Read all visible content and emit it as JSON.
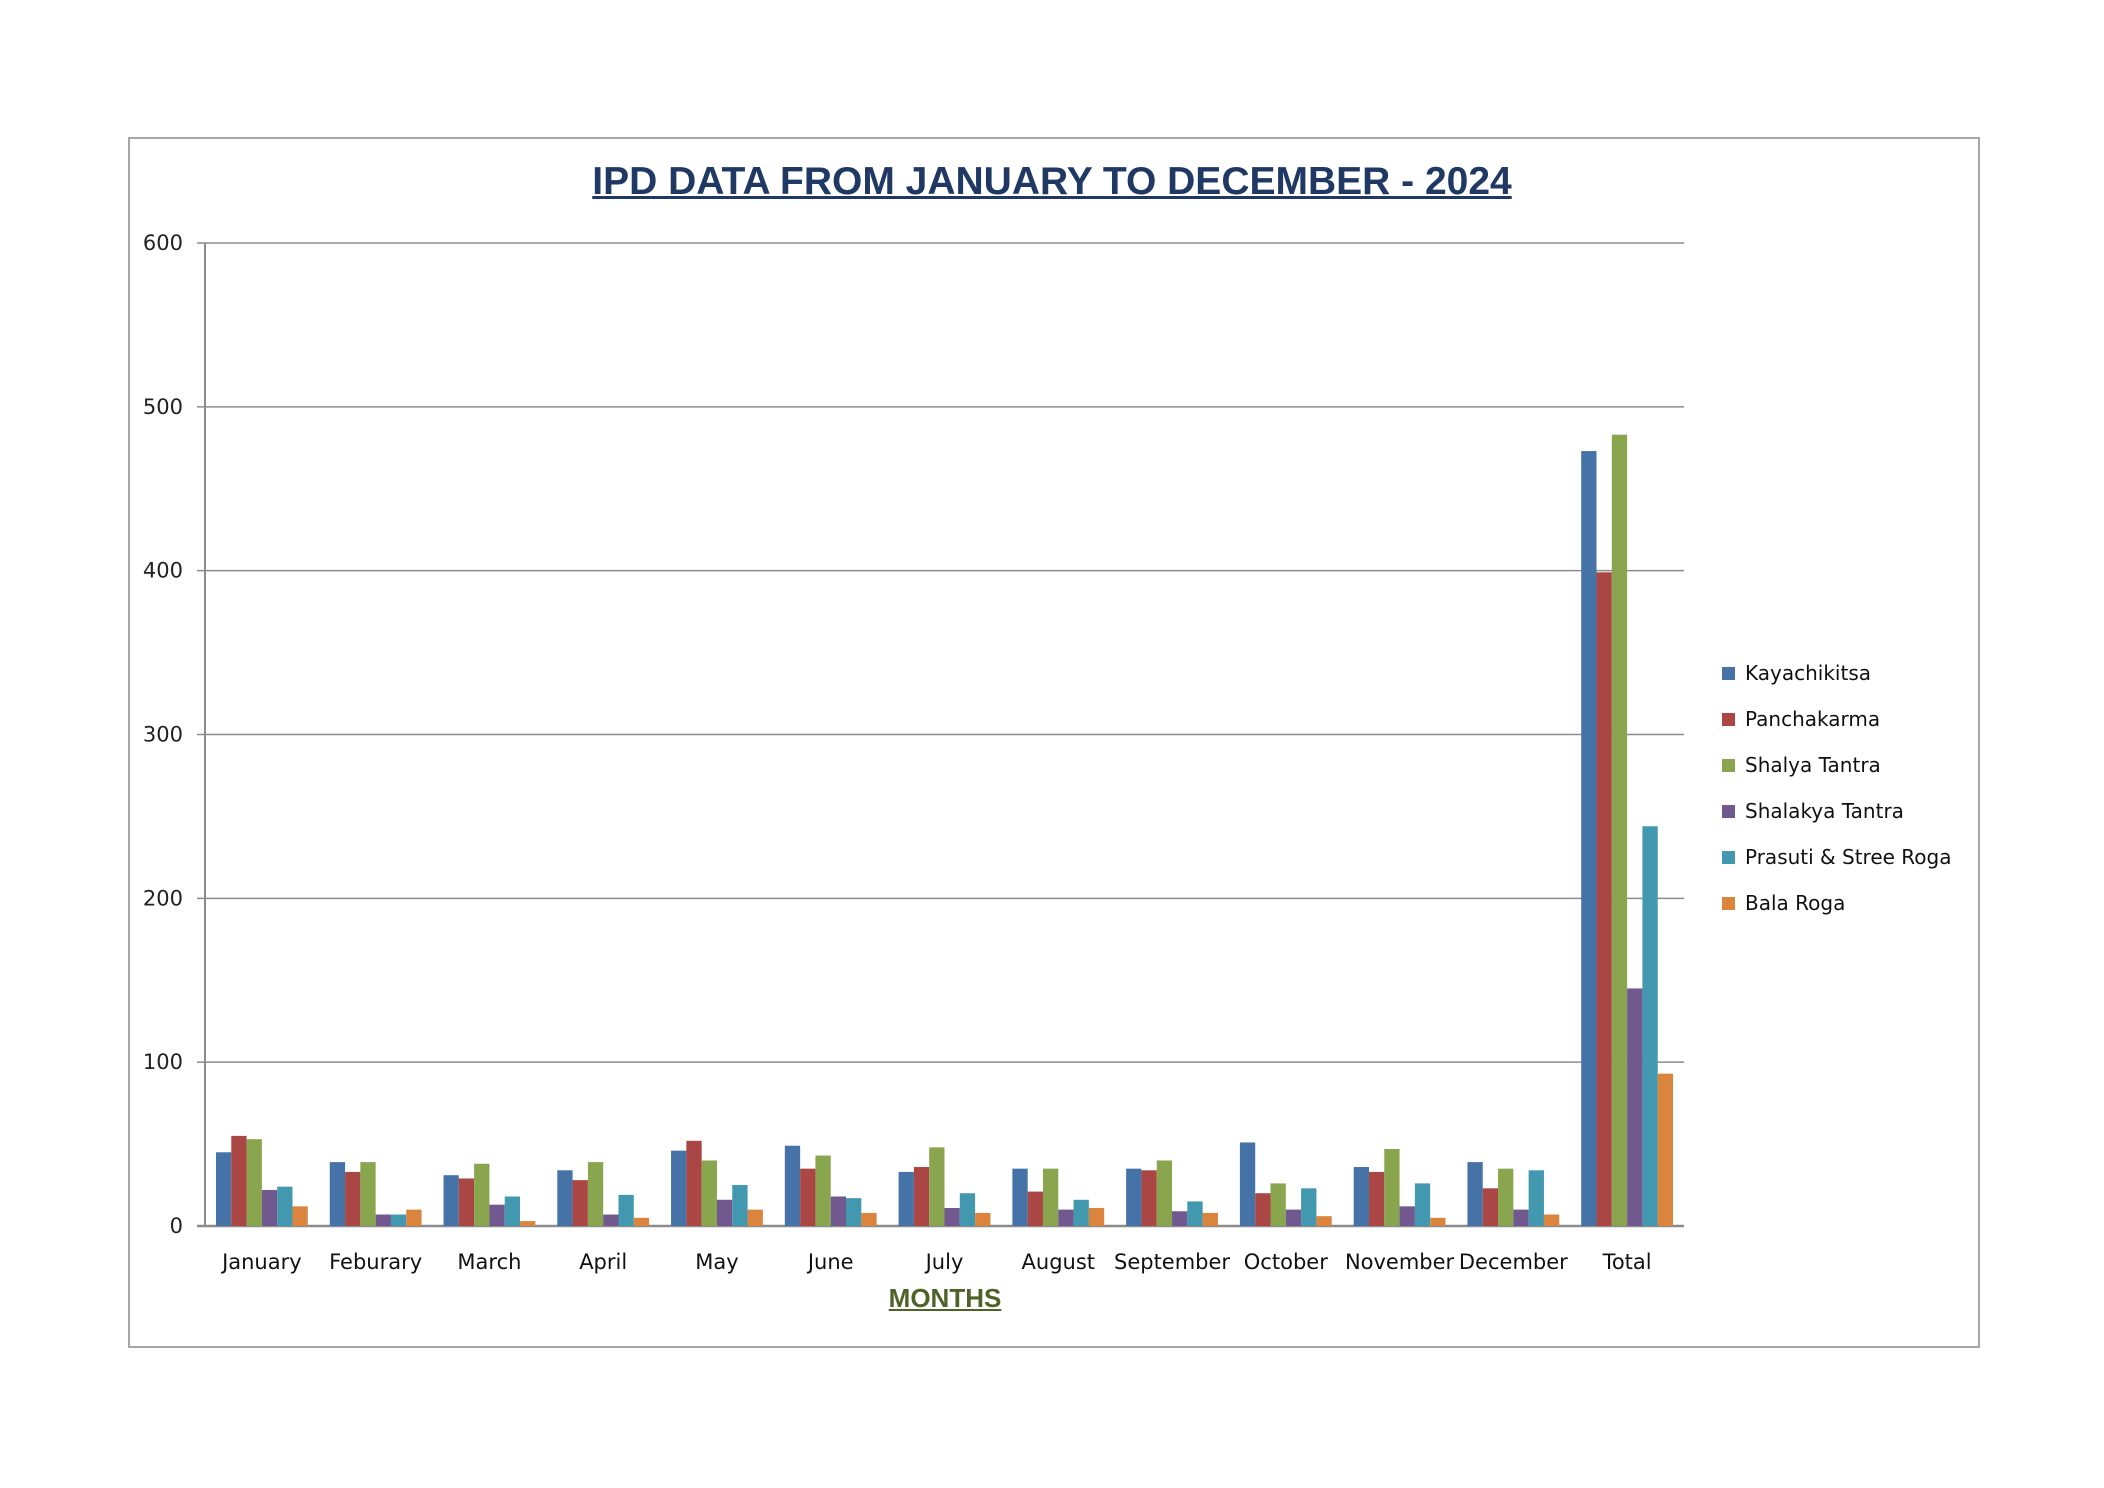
{
  "chart_data": {
    "type": "bar",
    "title": "IPD DATA FROM JANUARY TO DECEMBER - 2024",
    "xlabel": "MONTHS",
    "ylabel": "",
    "ylim": [
      0,
      600
    ],
    "yticks": [
      0,
      100,
      200,
      300,
      400,
      500,
      600
    ],
    "grid": true,
    "legend": "right",
    "categories": [
      "January",
      "Feburary",
      "March",
      "April",
      "May",
      "June",
      "July",
      "August",
      "September",
      "October",
      "November",
      "December",
      "Total"
    ],
    "series": [
      {
        "name": "Kayachikitsa",
        "color": "#4572a7",
        "values": [
          45,
          39,
          31,
          34,
          46,
          49,
          33,
          35,
          35,
          51,
          36,
          39,
          473
        ]
      },
      {
        "name": "Panchakarma",
        "color": "#aa4643",
        "values": [
          55,
          33,
          29,
          28,
          52,
          35,
          36,
          21,
          34,
          20,
          33,
          23,
          399
        ]
      },
      {
        "name": "Shalya Tantra",
        "color": "#89a54e",
        "values": [
          53,
          39,
          38,
          39,
          40,
          43,
          48,
          35,
          40,
          26,
          47,
          35,
          483
        ]
      },
      {
        "name": "Shalakya Tantra",
        "color": "#71588f",
        "values": [
          22,
          7,
          13,
          7,
          16,
          18,
          11,
          10,
          9,
          10,
          12,
          10,
          145
        ]
      },
      {
        "name": "Prasuti & Stree Roga",
        "color": "#4198af",
        "values": [
          24,
          7,
          18,
          19,
          25,
          17,
          20,
          16,
          15,
          23,
          26,
          34,
          244
        ]
      },
      {
        "name": "Bala Roga",
        "color": "#db843d",
        "values": [
          12,
          10,
          3,
          5,
          10,
          8,
          8,
          11,
          8,
          6,
          5,
          7,
          93
        ]
      }
    ]
  }
}
